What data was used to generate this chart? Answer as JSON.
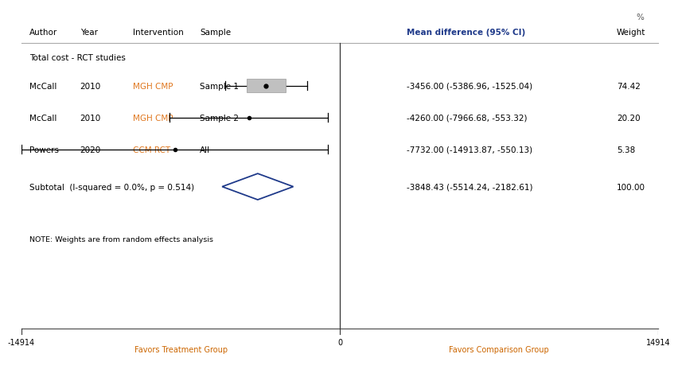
{
  "title_percent": "%",
  "header_row": {
    "author": "Author",
    "year": "Year",
    "intervention": "Intervention",
    "sample": "Sample",
    "mean_diff_ci": "Mean difference (95% CI)",
    "weight": "Weight"
  },
  "section_label": "Total cost - RCT studies",
  "studies": [
    {
      "author": "McCall",
      "year": "2010",
      "intervention": "MGH CMP",
      "sample": "Sample 1",
      "mean": -3456.0,
      "ci_lower": -5386.96,
      "ci_upper": -1525.04,
      "weight": 74.42,
      "label_md": "-3456.00 (-5386.96, -1525.04)",
      "label_w": "74.42",
      "marker_type": "square_dot"
    },
    {
      "author": "McCall",
      "year": "2010",
      "intervention": "MGH CMP",
      "sample": "Sample 2",
      "mean": -4260.0,
      "ci_lower": -7966.68,
      "ci_upper": -553.32,
      "weight": 20.2,
      "label_md": "-4260.00 (-7966.68, -553.32)",
      "label_w": "20.20",
      "marker_type": "dot"
    },
    {
      "author": "Powers",
      "year": "2020",
      "intervention": "CCM RCT",
      "sample": "All",
      "mean": -7732.0,
      "ci_lower": -14913.87,
      "ci_upper": -550.13,
      "weight": 5.38,
      "label_md": "-7732.00 (-14913.87, -550.13)",
      "label_w": "5.38",
      "marker_type": "dot"
    }
  ],
  "subtotal": {
    "label": "Subtotal  (I-squared = 0.0%, p = 0.514)",
    "mean": -3848.43,
    "ci_lower": -5514.24,
    "ci_upper": -2182.61,
    "label_md": "-3848.43 (-5514.24, -2182.61)",
    "label_w": "100.00"
  },
  "note": "NOTE: Weights are from random effects analysis",
  "x_min": -14914,
  "x_max": 14914,
  "x_ticks": [
    -14914,
    0,
    14914
  ],
  "x_label_left": "Favors Treatment Group",
  "x_label_right": "Favors Comparison Group",
  "zero_line_color": "#333333",
  "ci_color": "#000000",
  "diamond_color": "#1F3A8A",
  "intervention_color": "#E07820",
  "header_md_color": "#1F3A8A",
  "header_color": "#000000",
  "favors_color": "#CC6600",
  "marker_color": "#000000",
  "marker_box_color": "#C0C0C0",
  "bg_color": "#ffffff"
}
